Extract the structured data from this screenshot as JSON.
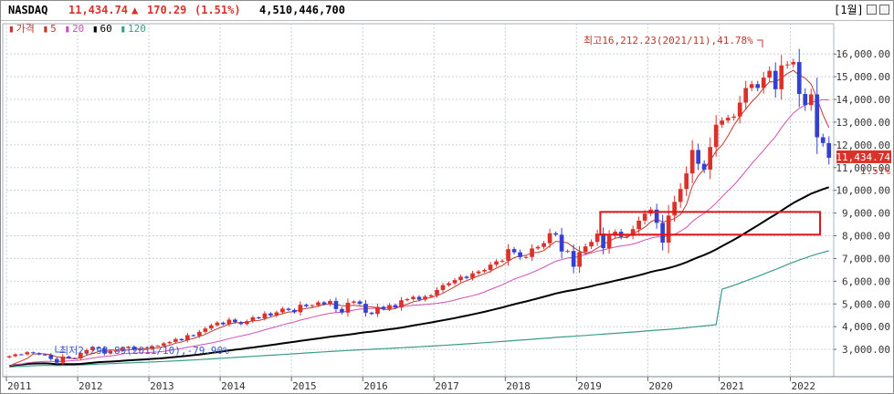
{
  "header": {
    "symbol": "NASDAQ",
    "price": "11,434.74",
    "arrow": "▲",
    "change": "170.29",
    "change_pct": "(1.51%)",
    "volume": "4,510,446,700",
    "period": "[1월]",
    "minimize_icon": "minimize-icon",
    "close_icon": "close-icon"
  },
  "legend": {
    "price": "가격",
    "ma5": "5",
    "ma20": "20",
    "ma60": "60",
    "ma120": "120"
  },
  "colors": {
    "up": "#d9322b",
    "down": "#3440cf",
    "ma5": "#c0392b",
    "ma20": "#d24fb2",
    "ma60": "#000000",
    "ma120": "#3a9c8c",
    "highlight": "#e0161a",
    "grid": "#c7d0e0"
  },
  "annotations": {
    "high": "최고16,212.23(2021/11),41.78%",
    "low": "최저2,298.89(2011/10),-79.90%",
    "last_price": "11,434.74",
    "last_pct": "1.51%"
  },
  "chart_data": {
    "type": "candlestick",
    "title": "NASDAQ",
    "period": "monthly",
    "y_ticks": [
      "3,000.00",
      "4,000.00",
      "5,000.00",
      "6,000.00",
      "7,000.00",
      "8,000.00",
      "9,000.00",
      "10,000.00",
      "11,000.00",
      "12,000.00",
      "13,000.00",
      "14,000.00",
      "15,000.00",
      "16,000.00"
    ],
    "y_tick_values": [
      3000,
      4000,
      5000,
      6000,
      7000,
      8000,
      9000,
      10000,
      11000,
      12000,
      13000,
      14000,
      15000,
      16000
    ],
    "ylim": [
      2000,
      16850
    ],
    "x_labels": [
      "2011",
      "2012",
      "2013",
      "2014",
      "2015",
      "2016",
      "2017",
      "2018",
      "2019",
      "2020",
      "2021",
      "2022"
    ],
    "x_label_index": [
      0,
      12,
      24,
      36,
      48,
      60,
      72,
      84,
      96,
      108,
      120,
      132
    ],
    "series": [
      {
        "name": "5",
        "color": "#c0392b"
      },
      {
        "name": "20",
        "color": "#d24fb2"
      },
      {
        "name": "60",
        "color": "#000000"
      },
      {
        "name": "120",
        "color": "#3a9c8c"
      }
    ],
    "closes": [
      2700,
      2782,
      2781,
      2873,
      2835,
      2774,
      2756,
      2579,
      2415,
      2684,
      2620,
      2605,
      2814,
      2967,
      3092,
      3046,
      2827,
      2935,
      2939,
      3067,
      3116,
      2977,
      3010,
      3020,
      3142,
      3160,
      3268,
      3329,
      3456,
      3403,
      3626,
      3590,
      3771,
      3920,
      4060,
      4177,
      4104,
      4308,
      4199,
      4115,
      4243,
      4408,
      4370,
      4580,
      4493,
      4631,
      4792,
      4736,
      4635,
      4964,
      4901,
      4941,
      5070,
      4987,
      5128,
      4777,
      4620,
      5054,
      5109,
      5007,
      4614,
      4558,
      4870,
      4775,
      4948,
      4843,
      5162,
      5213,
      5312,
      5189,
      5324,
      5383,
      5615,
      5825,
      5912,
      6048,
      6199,
      6140,
      6348,
      6429,
      6496,
      6728,
      6874,
      6903,
      7411,
      7273,
      7063,
      7066,
      7442,
      7510,
      7672,
      8110,
      8046,
      7306,
      7331,
      6635,
      7282,
      7533,
      7729,
      8095,
      7453,
      8006,
      8175,
      7963,
      7999,
      8292,
      8665,
      8973,
      9151,
      8567,
      7700,
      8889,
      9490,
      10058,
      10745,
      11775,
      11168,
      10912,
      11905,
      12888,
      13071,
      13192,
      13247,
      13860,
      14504,
      14672,
      14503,
      14959,
      15259,
      14449,
      15498,
      15538,
      15645,
      14239,
      13751,
      14221,
      12335,
      12081,
      11434
    ],
    "high_annotation": {
      "value": 16212.23,
      "date": "2021/11",
      "pct": 41.78
    },
    "low_annotation": {
      "value": 2298.89,
      "date": "2011/10",
      "pct": -79.9
    },
    "last": {
      "value": 11434.74,
      "pct": 1.51
    },
    "highlight_box": {
      "from_index": 100,
      "to_index": 137,
      "y_range": [
        8050,
        9050
      ]
    }
  }
}
